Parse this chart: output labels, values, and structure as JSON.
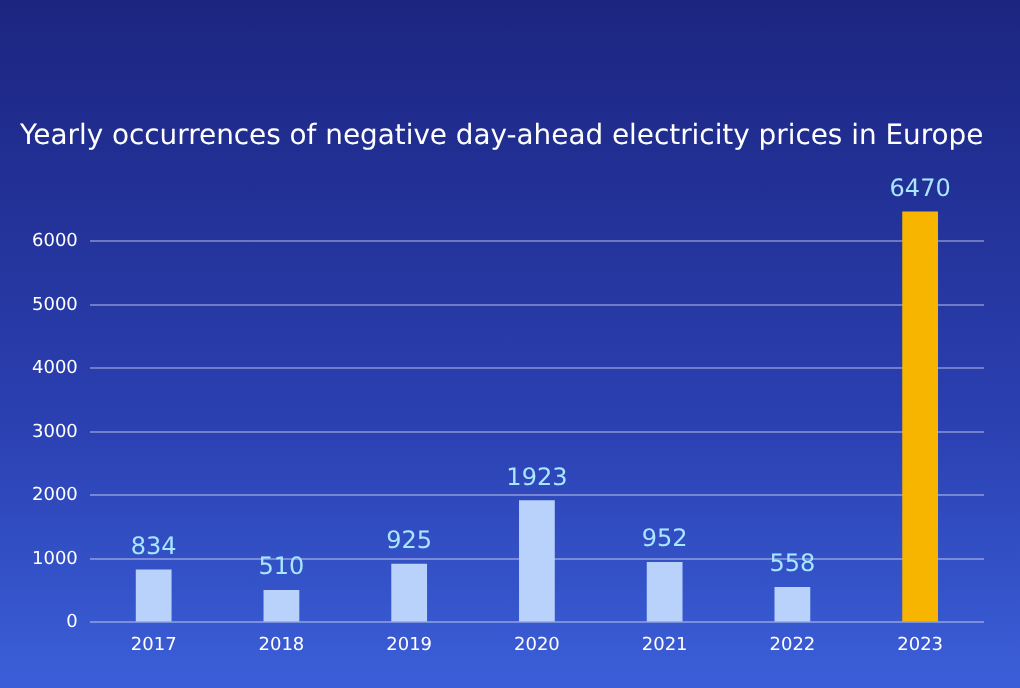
{
  "chart_data": {
    "type": "bar",
    "title": "Yearly occurrences of negative day-ahead electricity prices in Europe",
    "categories": [
      "2017",
      "2018",
      "2019",
      "2020",
      "2021",
      "2022",
      "2023"
    ],
    "values": [
      834,
      510,
      925,
      1923,
      952,
      558,
      6470
    ],
    "colors": [
      "#b8d2fb",
      "#b8d2fb",
      "#b8d2fb",
      "#b8d2fb",
      "#b8d2fb",
      "#b8d2fb",
      "#f7b500"
    ],
    "ylim": [
      0,
      6500
    ],
    "yticks": [
      0,
      1000,
      2000,
      3000,
      4000,
      5000,
      6000
    ],
    "grid": "y",
    "legend": false,
    "data_labels": true
  }
}
